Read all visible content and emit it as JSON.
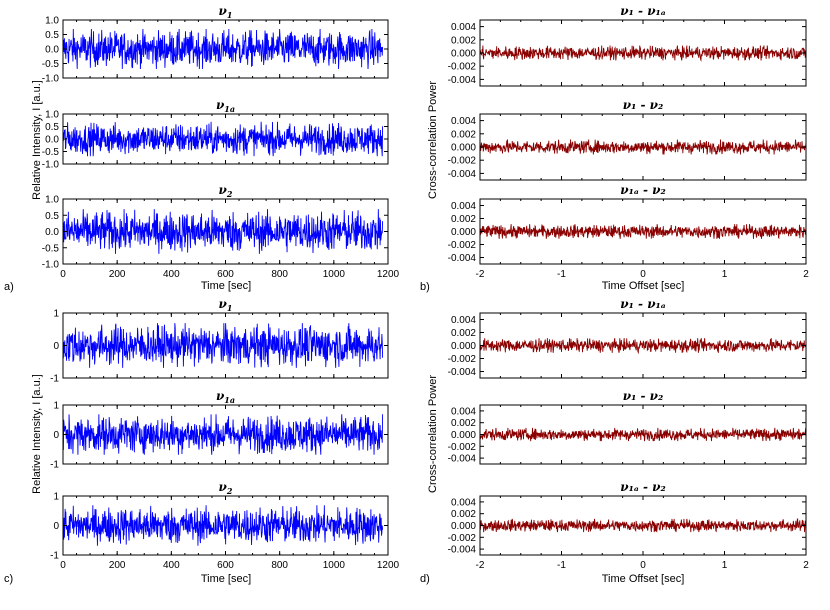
{
  "figure": {
    "panel_labels": [
      "a)",
      "b)",
      "c)",
      "d)"
    ],
    "time_series_color": "#0000ff",
    "crosscorr_color": "#8b0000"
  },
  "chart_data": [
    {
      "panel": "a)",
      "type": "line",
      "xlabel": "Time [sec]",
      "ylabel": "Relative Intensity, I [a.u.]",
      "xlim": [
        0,
        1200
      ],
      "xticks": [
        "0",
        "200",
        "400",
        "600",
        "800",
        "1000",
        "1200"
      ],
      "subplots": [
        {
          "title_base": "ν",
          "title_sub": "1",
          "ylim": [
            -1.0,
            1.0
          ],
          "yticks": [
            "1.0",
            "0.5",
            "0.0",
            "-0.5",
            "-1.0"
          ],
          "amplitude": 0.55,
          "x_end": 1180
        },
        {
          "title_base": "ν",
          "title_sub": "1a",
          "ylim": [
            -1.0,
            1.0
          ],
          "yticks": [
            "1.0",
            "0.5",
            "0.0",
            "-0.5",
            "-1.0"
          ],
          "amplitude": 0.55,
          "x_end": 1180
        },
        {
          "title_base": "ν",
          "title_sub": "2",
          "ylim": [
            -1.0,
            1.0
          ],
          "yticks": [
            "1.0",
            "0.5",
            "0.0",
            "-0.5",
            "-1.0"
          ],
          "amplitude": 0.55,
          "x_end": 1180
        }
      ]
    },
    {
      "panel": "b)",
      "type": "line",
      "xlabel": "Time Offset [sec]",
      "ylabel": "Cross-correlation Power",
      "xlim": [
        -2,
        2
      ],
      "xticks": [
        "-2",
        "-1",
        "0",
        "1",
        "2"
      ],
      "subplots": [
        {
          "title": "ν₁ - ν₁ₐ",
          "ylim": [
            -0.005,
            0.005
          ],
          "yticks": [
            "0.004",
            "0.002",
            "0.000",
            "-0.002",
            "-0.004"
          ],
          "amplitude": 0.0009
        },
        {
          "title": "ν₁ - ν₂",
          "ylim": [
            -0.005,
            0.005
          ],
          "yticks": [
            "0.004",
            "0.002",
            "0.000",
            "-0.002",
            "-0.004"
          ],
          "amplitude": 0.0009
        },
        {
          "title": "ν₁ₐ - ν₂",
          "ylim": [
            -0.005,
            0.005
          ],
          "yticks": [
            "0.004",
            "0.002",
            "0.000",
            "-0.002",
            "-0.004"
          ],
          "amplitude": 0.0009
        }
      ]
    },
    {
      "panel": "c)",
      "type": "line",
      "xlabel": "Time [sec]",
      "ylabel": "Relative Intensity, I [a.u.]",
      "xlim": [
        0,
        1200
      ],
      "xticks": [
        "0",
        "200",
        "400",
        "600",
        "800",
        "1000",
        "1200"
      ],
      "subplots": [
        {
          "title_base": "ν",
          "title_sub": "1",
          "ylim": [
            -1,
            1
          ],
          "yticks": [
            "1",
            "0",
            "-1"
          ],
          "amplitude": 0.55,
          "x_end": 1180
        },
        {
          "title_base": "ν",
          "title_sub": "1a",
          "ylim": [
            -1,
            1
          ],
          "yticks": [
            "1",
            "0",
            "-1"
          ],
          "amplitude": 0.55,
          "x_end": 1180
        },
        {
          "title_base": "ν",
          "title_sub": "2",
          "ylim": [
            -1,
            1
          ],
          "yticks": [
            "1",
            "0",
            "-1"
          ],
          "amplitude": 0.55,
          "x_end": 1180
        }
      ]
    },
    {
      "panel": "d)",
      "type": "line",
      "xlabel": "Time Offset [sec]",
      "ylabel": "Cross-correlation Power",
      "xlim": [
        -2,
        2
      ],
      "xticks": [
        "-2",
        "-1",
        "0",
        "1",
        "2"
      ],
      "subplots": [
        {
          "title": "ν₁ - ν₁ₐ",
          "ylim": [
            -0.005,
            0.005
          ],
          "yticks": [
            "0.004",
            "0.002",
            "0.000",
            "-0.002",
            "-0.004"
          ],
          "amplitude": 0.0009
        },
        {
          "title": "ν₁ - ν₂",
          "ylim": [
            -0.005,
            0.005
          ],
          "yticks": [
            "0.004",
            "0.002",
            "0.000",
            "-0.002",
            "-0.004"
          ],
          "amplitude": 0.0009
        },
        {
          "title": "ν₁ₐ - ν₂",
          "ylim": [
            -0.005,
            0.005
          ],
          "yticks": [
            "0.004",
            "0.002",
            "0.000",
            "-0.002",
            "-0.004"
          ],
          "amplitude": 0.0009
        }
      ]
    }
  ]
}
